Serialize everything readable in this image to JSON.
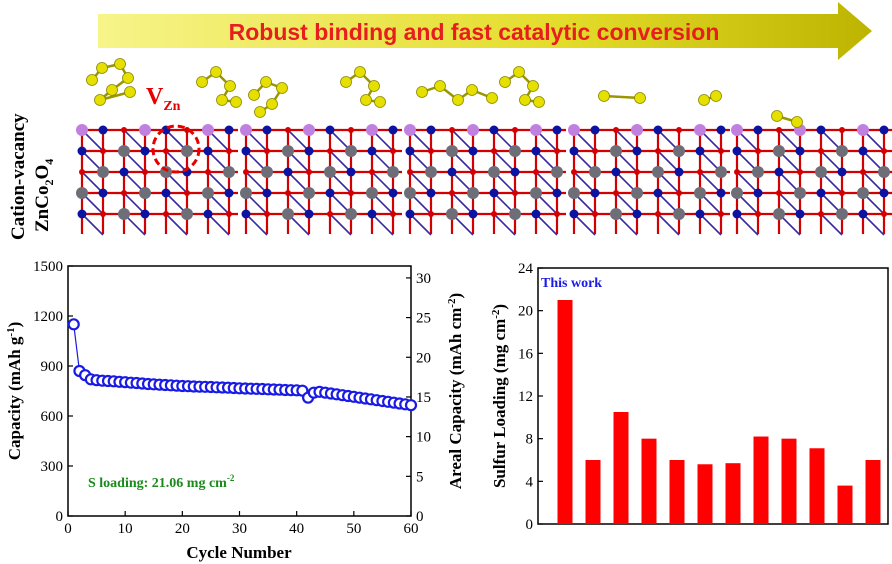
{
  "banner": {
    "text": "Robust binding and fast catalytic conversion"
  },
  "structure": {
    "side_label_line1": "Cation-vacancy",
    "side_label_line2": "ZnCo",
    "side_label_sub1": "2",
    "side_label_o": "O",
    "side_label_sub2": "4",
    "vacancy_label": "V",
    "vacancy_sub": "Zn",
    "panel_count": 5
  },
  "colors": {
    "banner_start": "#f6f37e",
    "banner_end": "#c8c000",
    "banner_text": "#e61e1e",
    "co_atom": "#6e6e78",
    "o_atom": "#d20000",
    "zn_atom": "#0a14a0",
    "s_atom": "#e6e000",
    "li_atom": "#c080e0",
    "cycle_series": "#1a1ae6",
    "bar_color": "#ff0000",
    "annotation_green": "#1a8a1a"
  },
  "chart_data": [
    {
      "type": "scatter",
      "xlabel": "Cycle Number",
      "ylabel": "Capacity (mAh g",
      "ylabel_sup": "-1",
      "ylabel_end": ")",
      "y2label": "Areal Capacity (mAh cm",
      "y2label_sup": "-2",
      "y2label_end": ")",
      "xlim": [
        0,
        60
      ],
      "ylim": [
        0,
        1500
      ],
      "y2lim": [
        0,
        31.5
      ],
      "xticks": [
        "0",
        "10",
        "20",
        "30",
        "40",
        "50",
        "60"
      ],
      "yticks": [
        "0",
        "300",
        "600",
        "900",
        "1200",
        "1500"
      ],
      "y2ticks": [
        "0",
        "5",
        "10",
        "15",
        "20",
        "25",
        "30"
      ],
      "annotation": "S loading: 21.06 mg cm",
      "annotation_sup": "-2",
      "series": [
        {
          "x": [
            1,
            2,
            3,
            4,
            5,
            6,
            7,
            8,
            9,
            10,
            11,
            12,
            13,
            14,
            15,
            16,
            17,
            18,
            19,
            20,
            21,
            22,
            23,
            24,
            25,
            26,
            27,
            28,
            29,
            30,
            31,
            32,
            33,
            34,
            35,
            36,
            37,
            38,
            39,
            40,
            41,
            42,
            43,
            44,
            45,
            46,
            47,
            48,
            49,
            50,
            51,
            52,
            53,
            54,
            55,
            56,
            57,
            58,
            59,
            60
          ],
          "y": [
            1150,
            870,
            845,
            820,
            815,
            812,
            810,
            808,
            805,
            803,
            800,
            798,
            795,
            792,
            790,
            788,
            786,
            784,
            782,
            780,
            779,
            777,
            776,
            775,
            774,
            772,
            771,
            770,
            768,
            766,
            765,
            764,
            763,
            762,
            760,
            759,
            758,
            756,
            755,
            754,
            752,
            710,
            740,
            745,
            740,
            735,
            730,
            725,
            720,
            715,
            710,
            705,
            700,
            695,
            690,
            685,
            680,
            675,
            670,
            665
          ]
        }
      ]
    },
    {
      "type": "bar",
      "ylabel": "Sulfur Loading (mg cm",
      "ylabel_sup": "-2",
      "ylabel_end": ")",
      "ylim": [
        0,
        24
      ],
      "yticks": [
        "0",
        "4",
        "8",
        "12",
        "16",
        "20",
        "24"
      ],
      "annotation": "This work",
      "values": [
        21.0,
        6.0,
        10.5,
        8.0,
        6.0,
        5.6,
        5.7,
        8.2,
        8.0,
        7.1,
        3.6,
        6.0
      ]
    }
  ]
}
